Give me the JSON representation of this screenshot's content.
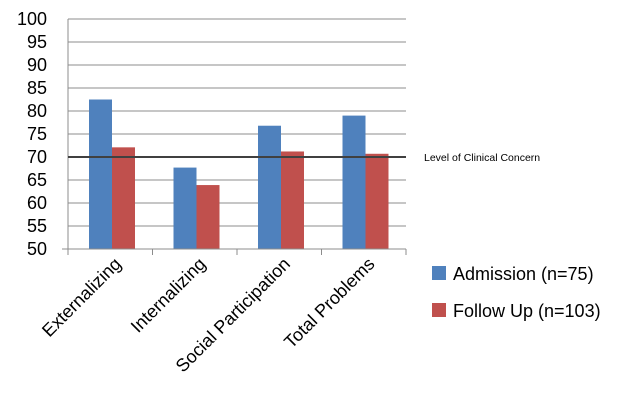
{
  "chart_data": {
    "type": "bar",
    "title": "",
    "xlabel": "",
    "ylabel": "",
    "categories": [
      "Externalizing",
      "Internalizing",
      "Social Participation",
      "Total Problems"
    ],
    "series": [
      {
        "name": "Admission (n=75)",
        "values": [
          82.5,
          67.7,
          76.8,
          79.0
        ],
        "color": "#4F81BD"
      },
      {
        "name": "Follow Up (n=103)",
        "values": [
          72.1,
          63.9,
          71.2,
          70.7
        ],
        "color": "#C0504D"
      }
    ],
    "ylim": [
      50,
      100
    ],
    "yticks": [
      50,
      55,
      60,
      65,
      70,
      75,
      80,
      85,
      90,
      95,
      100
    ],
    "grid": true,
    "legend_position": "bottom-right",
    "reference_line": {
      "value": 70,
      "label": "Level of Clinical Concern",
      "color": "#404040"
    }
  }
}
